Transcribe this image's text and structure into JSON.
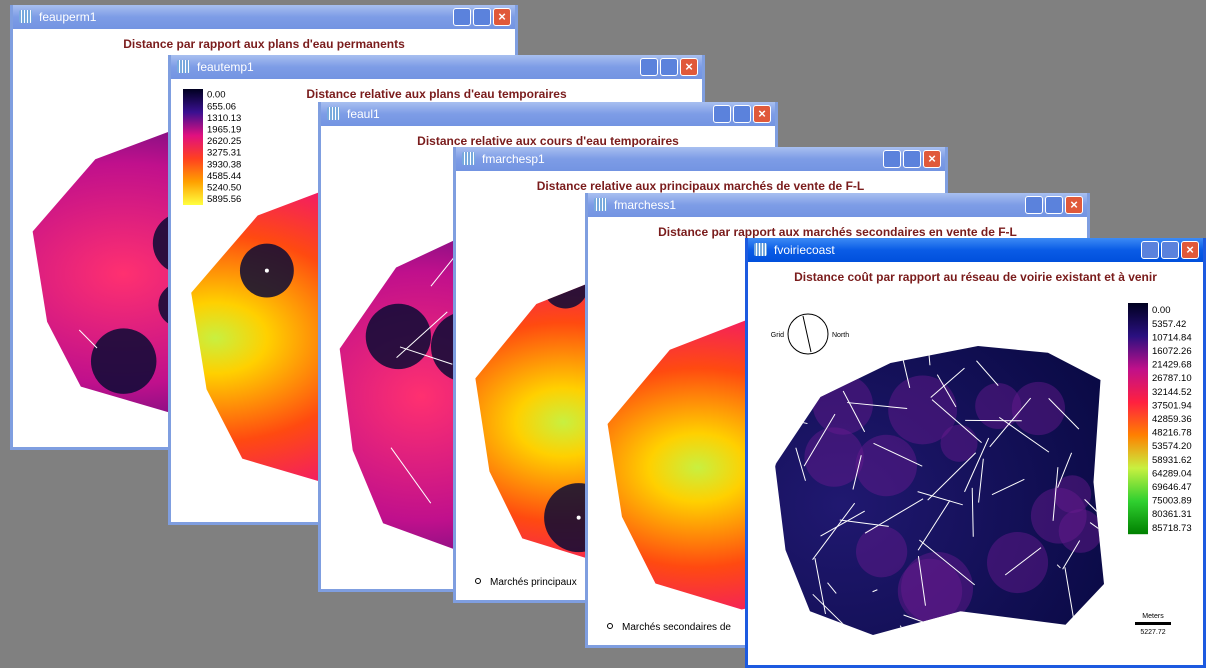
{
  "windows": [
    {
      "title": "feauperm1",
      "map_title": "Distance par rapport aux plans d'eau permanents"
    },
    {
      "title": "feautemp1",
      "map_title": "Distance relative aux plans d'eau temporaires",
      "legend": [
        "0.00",
        "655.06",
        "1310.13",
        "1965.19",
        "2620.25",
        "3275.31",
        "3930.38",
        "4585.44",
        "5240.50",
        "5895.56"
      ]
    },
    {
      "title": "feaul1",
      "map_title": "Distance relative aux cours d'eau temporaires"
    },
    {
      "title": "fmarchesp1",
      "map_title": "Distance relative aux principaux marchés de vente de F-L",
      "note": "Marchés principaux"
    },
    {
      "title": "fmarchess1",
      "map_title": "Distance par rapport aux marchés secondaires en vente de F-L",
      "note": "Marchés secondaires de"
    },
    {
      "title": "fvoiriecoast",
      "map_title": "Distance coût par rapport au réseau de voirie existant et à venir",
      "legend": [
        "0.00",
        "5357.42",
        "10714.84",
        "16072.26",
        "21429.68",
        "26787.10",
        "32144.52",
        "37501.94",
        "42859.36",
        "48216.78",
        "53574.20",
        "58931.62",
        "64289.04",
        "69646.47",
        "75003.89",
        "80361.31",
        "85718.73"
      ],
      "compass": [
        "Grid",
        "North"
      ],
      "scale_unit": "Meters",
      "scale_value": "5227.72"
    }
  ]
}
